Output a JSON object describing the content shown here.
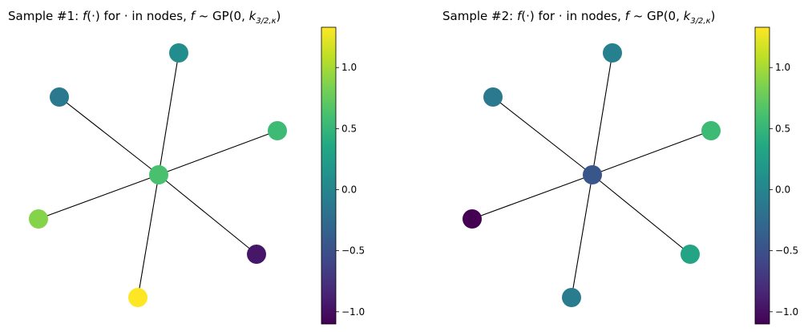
{
  "chart_data": [
    {
      "type": "graph",
      "title": "Sample #1: f(·) for · in nodes, f ~ GP(0, k_{3/2,κ})",
      "title_parts": [
        "Sample #1: ",
        "f",
        "(·) for · in nodes, ",
        "f",
        " ~ GP(0, ",
        "k",
        "3/2,κ",
        ")"
      ],
      "colormap": "viridis",
      "clim": [
        -1.1,
        1.33
      ],
      "colorbar_ticks": [
        1.0,
        0.5,
        0.0,
        -0.5,
        -1.0
      ],
      "colorbar_tick_labels": [
        "1.0",
        "0.5",
        "0.0",
        "−0.5",
        "−1.0"
      ],
      "nodes": [
        {
          "id": "center",
          "value": 0.62
        },
        {
          "id": "top",
          "value": 0.08
        },
        {
          "id": "upper-left",
          "value": -0.12
        },
        {
          "id": "right",
          "value": 0.55
        },
        {
          "id": "left",
          "value": 0.88
        },
        {
          "id": "lower-right",
          "value": -0.95
        },
        {
          "id": "bottom",
          "value": 1.33
        }
      ],
      "edges": [
        [
          "center",
          "top"
        ],
        [
          "center",
          "upper-left"
        ],
        [
          "center",
          "right"
        ],
        [
          "center",
          "left"
        ],
        [
          "center",
          "lower-right"
        ],
        [
          "center",
          "bottom"
        ]
      ]
    },
    {
      "type": "graph",
      "title": "Sample #2: f(·) for · in nodes, f ~ GP(0, k_{3/2,κ})",
      "title_parts": [
        "Sample #2: ",
        "f",
        "(·) for · in nodes, ",
        "f",
        " ~ GP(0, ",
        "k",
        "3/2,κ",
        ")"
      ],
      "colormap": "viridis",
      "clim": [
        -1.1,
        1.33
      ],
      "colorbar_ticks": [
        1.0,
        0.5,
        0.0,
        -0.5,
        -1.0
      ],
      "colorbar_tick_labels": [
        "1.0",
        "0.5",
        "0.0",
        "−0.5",
        "−1.0"
      ],
      "nodes": [
        {
          "id": "center",
          "value": -0.45
        },
        {
          "id": "top",
          "value": -0.05
        },
        {
          "id": "upper-left",
          "value": -0.12
        },
        {
          "id": "right",
          "value": 0.55
        },
        {
          "id": "left",
          "value": -1.1
        },
        {
          "id": "lower-right",
          "value": 0.32
        },
        {
          "id": "bottom",
          "value": -0.1
        }
      ],
      "edges": [
        [
          "center",
          "top"
        ],
        [
          "center",
          "upper-left"
        ],
        [
          "center",
          "right"
        ],
        [
          "center",
          "left"
        ],
        [
          "center",
          "lower-right"
        ],
        [
          "center",
          "bottom"
        ]
      ]
    }
  ]
}
